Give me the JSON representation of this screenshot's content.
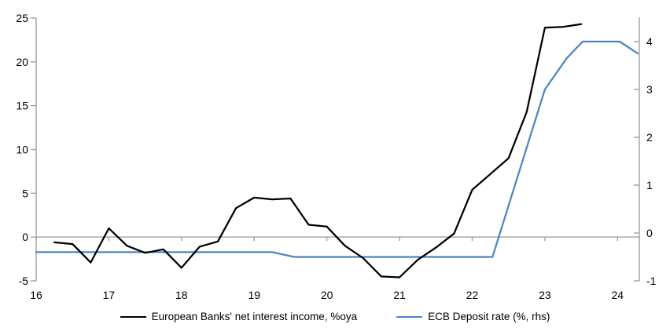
{
  "chart_data": {
    "type": "line",
    "title": "",
    "xlabel": "",
    "ylabel_left": "",
    "ylabel_right": "",
    "x_axis": {
      "ticks": [
        16,
        17,
        18,
        19,
        20,
        21,
        22,
        23,
        24
      ],
      "min": 16,
      "max": 24.3
    },
    "left_axis": {
      "ticks": [
        25,
        20,
        15,
        10,
        5,
        0,
        -5
      ],
      "min": -5,
      "max": 25
    },
    "right_axis": {
      "ticks": [
        4,
        3,
        2,
        1,
        0,
        -1
      ],
      "min": -1,
      "max": 4.5
    },
    "grid": false,
    "zero_line": true,
    "legend_position": "bottom-center",
    "colors": {
      "background": "#ffffff",
      "axis": "#a6a6a6",
      "zero_line": "#a8a8a8",
      "black_series": "#000000",
      "blue_series": "#4e85c1"
    },
    "series": [
      {
        "name": "European Banks' net interest income, %oya",
        "axis": "left",
        "color": "#000000",
        "x": [
          16.25,
          16.5,
          16.75,
          17.0,
          17.25,
          17.5,
          17.75,
          18.0,
          18.25,
          18.5,
          18.75,
          19.0,
          19.25,
          19.5,
          19.75,
          20.0,
          20.25,
          20.5,
          20.75,
          21.0,
          21.25,
          21.5,
          21.75,
          22.0,
          22.25,
          22.5,
          22.75,
          23.0,
          23.25,
          23.5
        ],
        "values": [
          -0.6,
          -0.8,
          -2.9,
          1.0,
          -1.0,
          -1.8,
          -1.4,
          -3.5,
          -1.1,
          -0.5,
          3.3,
          4.5,
          4.3,
          4.4,
          1.4,
          1.2,
          -1.0,
          -2.4,
          -4.5,
          -4.6,
          -2.6,
          -1.2,
          0.4,
          5.4,
          7.2,
          9.0,
          14.3,
          23.9,
          24.0,
          24.3
        ]
      },
      {
        "name": "ECB Deposit rate (%, rhs)",
        "axis": "right",
        "color": "#4e85c1",
        "x": [
          16.0,
          19.25,
          19.55,
          22.28,
          23.0,
          23.3,
          23.52,
          24.03,
          24.28
        ],
        "values": [
          -0.4,
          -0.4,
          -0.5,
          -0.5,
          3.0,
          3.65,
          4.0,
          4.0,
          3.75
        ]
      }
    ]
  }
}
